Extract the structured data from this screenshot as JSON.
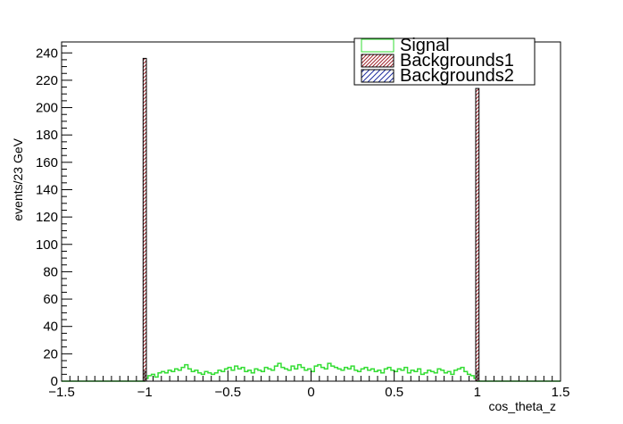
{
  "chart_data": {
    "type": "bar",
    "style": "histogram",
    "xlabel": "cos_theta_z",
    "ylabel": "events/23 GeV",
    "xlim": [
      -1.5,
      1.5
    ],
    "ylim": [
      0,
      248
    ],
    "x_ticks": [
      -1.5,
      -1,
      -0.5,
      0,
      0.5,
      1,
      1.5
    ],
    "x_tick_labels": [
      "−1.5",
      "−1",
      "−0.5",
      "0",
      "0.5",
      "1",
      "1.5"
    ],
    "y_ticks": [
      0,
      20,
      40,
      60,
      80,
      100,
      120,
      140,
      160,
      180,
      200,
      220,
      240
    ],
    "y_tick_labels": [
      "0",
      "20",
      "40",
      "60",
      "80",
      "100",
      "120",
      "140",
      "160",
      "180",
      "200",
      "220",
      "240"
    ],
    "grid": false,
    "legend_position": "top-right",
    "series": [
      {
        "name": "Signal",
        "kind": "step",
        "color": "#33dd33",
        "bin_range": [
          -1.0,
          1.0
        ],
        "bin_width": 0.02,
        "values": [
          2,
          4,
          5,
          3,
          6,
          7,
          6,
          8,
          7,
          9,
          8,
          10,
          12,
          9,
          7,
          8,
          6,
          5,
          7,
          6,
          5,
          6,
          8,
          7,
          9,
          10,
          8,
          11,
          9,
          10,
          7,
          8,
          6,
          9,
          8,
          7,
          10,
          9,
          8,
          11,
          13,
          10,
          9,
          8,
          11,
          9,
          12,
          10,
          8,
          9,
          7,
          11,
          12,
          10,
          9,
          13,
          11,
          10,
          9,
          8,
          10,
          9,
          11,
          8,
          7,
          9,
          10,
          8,
          9,
          7,
          8,
          6,
          9,
          10,
          8,
          7,
          9,
          8,
          10,
          6,
          8,
          7,
          9,
          5,
          6,
          8,
          7,
          6,
          9,
          8,
          6,
          7,
          5,
          8,
          9,
          10,
          7,
          5,
          4,
          2
        ]
      },
      {
        "name": "Backgrounds1",
        "kind": "hatched-bar",
        "color": "#a0262e",
        "bins": [
          {
            "x_low": -1.01,
            "x_high": -0.99,
            "value": 236
          },
          {
            "x_low": 0.99,
            "x_high": 1.01,
            "value": 214
          }
        ]
      },
      {
        "name": "Backgrounds2",
        "kind": "hatched-bar",
        "color": "#1f2fa0",
        "bins": []
      }
    ]
  }
}
